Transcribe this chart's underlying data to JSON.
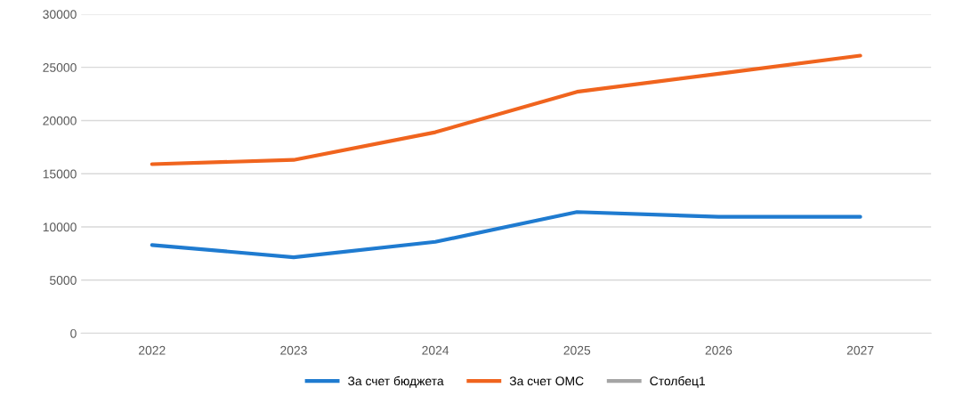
{
  "chart_data": {
    "type": "line",
    "categories": [
      "2022",
      "2023",
      "2024",
      "2025",
      "2026",
      "2027"
    ],
    "series": [
      {
        "name": "За счет бюджета",
        "color": "#1f7bd0",
        "values": [
          8300,
          7150,
          8600,
          11400,
          10950,
          10950
        ]
      },
      {
        "name": "За счет ОМС",
        "color": "#f0641e",
        "values": [
          15900,
          16300,
          18900,
          22700,
          24400,
          26100
        ]
      },
      {
        "name": "Столбец1",
        "color": "#a5a5a5",
        "values": [
          null,
          null,
          null,
          null,
          null,
          null
        ]
      }
    ],
    "ylim": [
      0,
      30000
    ],
    "yticks": [
      0,
      5000,
      10000,
      15000,
      20000,
      25000,
      30000
    ],
    "grid": "y",
    "legend": "bottom",
    "marker": "none",
    "line_style": "solid"
  }
}
